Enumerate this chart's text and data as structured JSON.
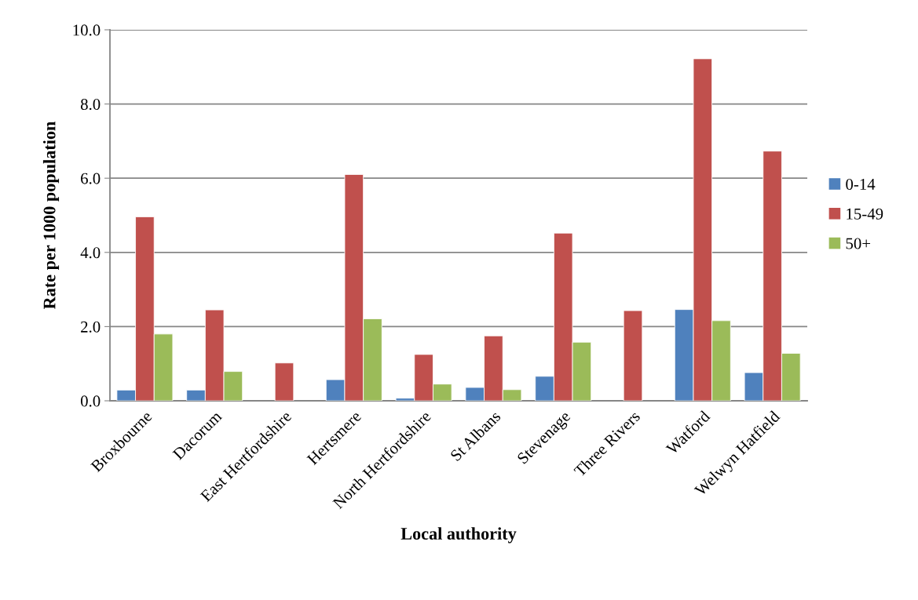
{
  "chart_data": {
    "type": "bar",
    "xlabel": "Local authority",
    "ylabel": "Rate per 1000 population",
    "categories": [
      "Broxbourne",
      "Dacorum",
      "East Hertfordshire",
      "Hertsmere",
      "North Hertfordshire",
      "St Albans",
      "Stevenage",
      "Three Rivers",
      "Watford",
      "Welwyn Hatfield"
    ],
    "series": [
      {
        "name": "0-14",
        "color": "#4f81bd",
        "values": [
          0.29,
          0.29,
          null,
          0.57,
          0.07,
          0.36,
          0.66,
          null,
          2.46,
          0.76
        ]
      },
      {
        "name": "15-49",
        "color": "#c0504d",
        "values": [
          4.96,
          2.45,
          1.02,
          6.1,
          1.25,
          1.75,
          4.52,
          2.43,
          9.22,
          6.73
        ]
      },
      {
        "name": "50+",
        "color": "#9bbb59",
        "values": [
          1.8,
          0.79,
          null,
          2.21,
          0.45,
          0.3,
          1.58,
          null,
          2.16,
          1.28
        ]
      }
    ],
    "ylim": [
      0,
      10
    ],
    "yticks": [
      {
        "value": 0,
        "label": "0.0"
      },
      {
        "value": 2,
        "label": "2.0"
      },
      {
        "value": 4,
        "label": "4.0"
      },
      {
        "value": 6,
        "label": "6.0"
      },
      {
        "value": 8,
        "label": "8.0"
      },
      {
        "value": 10,
        "label": "10.0"
      }
    ],
    "grid": "y",
    "legend": "right"
  }
}
